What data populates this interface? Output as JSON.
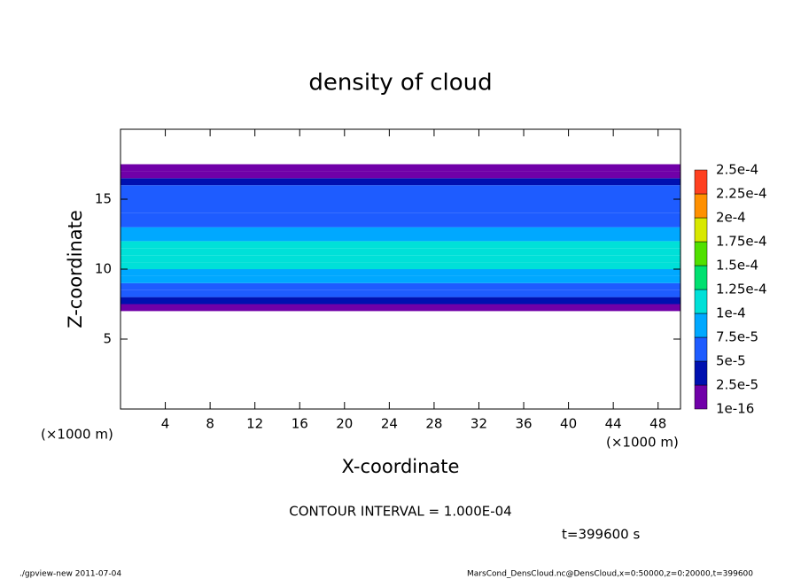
{
  "chart_data": {
    "type": "contour",
    "title": "density of cloud",
    "xlabel": "X-coordinate",
    "ylabel": "Z-coordinate",
    "x_unit": "(×1000 m)",
    "annotation": "CONTOUR INTERVAL = 1.000E-04",
    "time_label": "t=399600 s",
    "footer_left": "./gpview-new  2011-07-04",
    "footer_right": "MarsCond_DensCloud.nc@DensCloud,x=0:50000,z=0:20000,t=399600",
    "xlim": [
      0,
      50
    ],
    "xticks": [
      4,
      8,
      12,
      16,
      20,
      24,
      28,
      32,
      36,
      40,
      44,
      48
    ],
    "ylim": [
      0,
      20
    ],
    "yticks": [
      5,
      10,
      15
    ],
    "z_edges": [
      7,
      7.5,
      8,
      8.5,
      9,
      9.5,
      10,
      10.5,
      11,
      11.5,
      12,
      12.5,
      13,
      14,
      15,
      16,
      16.5,
      17,
      17.5
    ],
    "values": [
      1e-05,
      3e-05,
      5.5e-05,
      7e-05,
      8.5e-05,
      9.5e-05,
      0.00011,
      0.000115,
      0.000115,
      0.000105,
      9e-05,
      8e-05,
      7e-05,
      6e-05,
      5.5e-05,
      3e-05,
      1e-05,
      1e-05
    ],
    "levels": [
      1e-16,
      {
        "value": 2.5e-05,
        "label": "2.5e-5"
      },
      {
        "value": 5e-05,
        "label": "5e-5"
      },
      {
        "value": 7.5e-05,
        "label": "7.5e-5"
      },
      {
        "value": 0.0001,
        "label": "1e-4"
      },
      {
        "value": 0.000125,
        "label": "1.25e-4"
      },
      {
        "value": 0.00015,
        "label": "1.5e-4"
      },
      {
        "value": 0.000175,
        "label": "1.75e-4"
      },
      {
        "value": 0.0002,
        "label": "2e-4"
      },
      {
        "value": 0.000225,
        "label": "2.25e-4"
      },
      {
        "value": 0.00025,
        "label": "2.5e-4"
      }
    ],
    "colors": [
      "#7000a8",
      "#0010b0",
      "#1e5cff",
      "#00a8ff",
      "#00e0d8",
      "#00e070",
      "#50e000",
      "#d8e800",
      "#ff9000",
      "#ff4020"
    ]
  }
}
